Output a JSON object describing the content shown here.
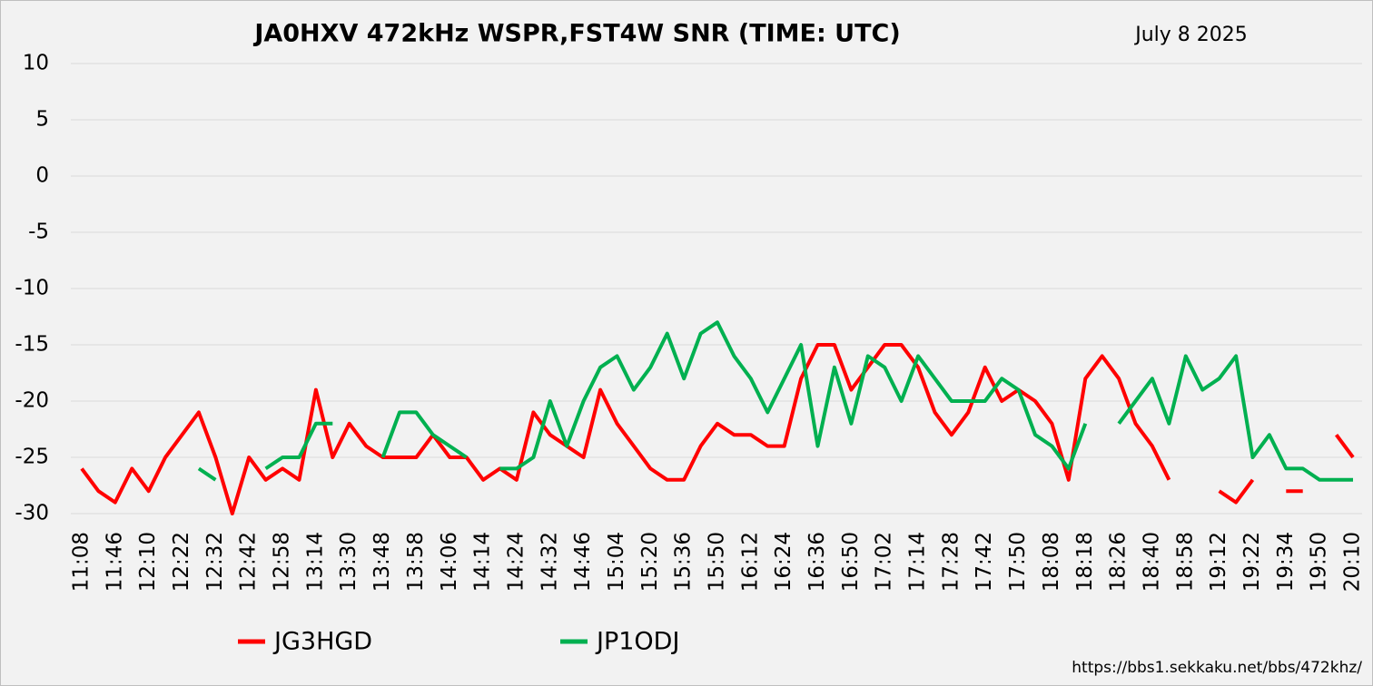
{
  "chart_data": {
    "type": "line",
    "title": "JA0HXV 472kHz WSPR,FST4W SNR (TIME: UTC)",
    "date": "July 8 2025",
    "source": "https://bbs1.sekkaku.net/bbs/472khz/",
    "categories": [
      "11:08",
      null,
      "11:46",
      null,
      "12:10",
      null,
      "12:22",
      null,
      "12:32",
      null,
      "12:42",
      null,
      "12:58",
      null,
      "13:14",
      null,
      "13:30",
      null,
      "13:48",
      null,
      "13:58",
      null,
      "14:06",
      null,
      "14:14",
      null,
      "14:24",
      null,
      "14:32",
      null,
      "14:46",
      null,
      "15:04",
      null,
      "15:20",
      null,
      "15:36",
      null,
      "15:50",
      null,
      "16:12",
      null,
      "16:24",
      null,
      "16:36",
      null,
      "16:50",
      null,
      "17:02",
      null,
      "17:14",
      null,
      "17:28",
      null,
      "17:42",
      null,
      "17:50",
      null,
      "18:08",
      null,
      "18:18",
      null,
      "18:26",
      null,
      "18:40",
      null,
      "18:58",
      null,
      "19:12",
      null,
      "19:22",
      null,
      "19:34",
      null,
      "19:50",
      null,
      "20:10"
    ],
    "series": [
      {
        "name": "JG3HGD",
        "color": "#ff0000",
        "values": [
          -26,
          -28,
          -29,
          -26,
          -28,
          -25,
          -23,
          -21,
          -25,
          -30,
          -25,
          -27,
          -26,
          -27,
          -19,
          -25,
          -22,
          -24,
          -25,
          -25,
          -25,
          -23,
          -25,
          -25,
          -27,
          -26,
          -27,
          -21,
          -23,
          -24,
          -25,
          -19,
          -22,
          -24,
          -26,
          -27,
          -27,
          -24,
          -22,
          -23,
          -23,
          -24,
          -24,
          -18,
          -15,
          -15,
          -19,
          -17,
          -15,
          -15,
          -17,
          -21,
          -23,
          -21,
          -17,
          -20,
          -19,
          -20,
          -22,
          -27,
          -18,
          -16,
          -18,
          -22,
          -24,
          -27,
          null,
          null,
          -28,
          -29,
          -27,
          null,
          -28,
          -28,
          null,
          -23,
          -25
        ]
      },
      {
        "name": "JP1ODJ",
        "color": "#00b050",
        "values": [
          null,
          null,
          null,
          null,
          null,
          null,
          null,
          -26,
          -27,
          null,
          null,
          -26,
          -25,
          -25,
          -22,
          -22,
          null,
          null,
          -25,
          -21,
          -21,
          -23,
          -24,
          -25,
          null,
          -26,
          -26,
          -25,
          -20,
          -24,
          -20,
          -17,
          -16,
          -19,
          -17,
          -14,
          -18,
          -14,
          -13,
          -16,
          -18,
          -21,
          -18,
          -15,
          -24,
          -17,
          -22,
          -16,
          -17,
          -20,
          -16,
          -18,
          -20,
          -20,
          -20,
          -18,
          -19,
          -23,
          -24,
          -26,
          -22,
          null,
          -22,
          -20,
          -18,
          -22,
          -16,
          -19,
          -18,
          -16,
          -25,
          -23,
          -26,
          -26,
          -27,
          -27,
          -27
        ]
      }
    ],
    "ylim": [
      -30,
      10
    ],
    "yticks": [
      -30,
      -25,
      -20,
      -15,
      -10,
      -5,
      0,
      5,
      10
    ],
    "grid": true
  }
}
